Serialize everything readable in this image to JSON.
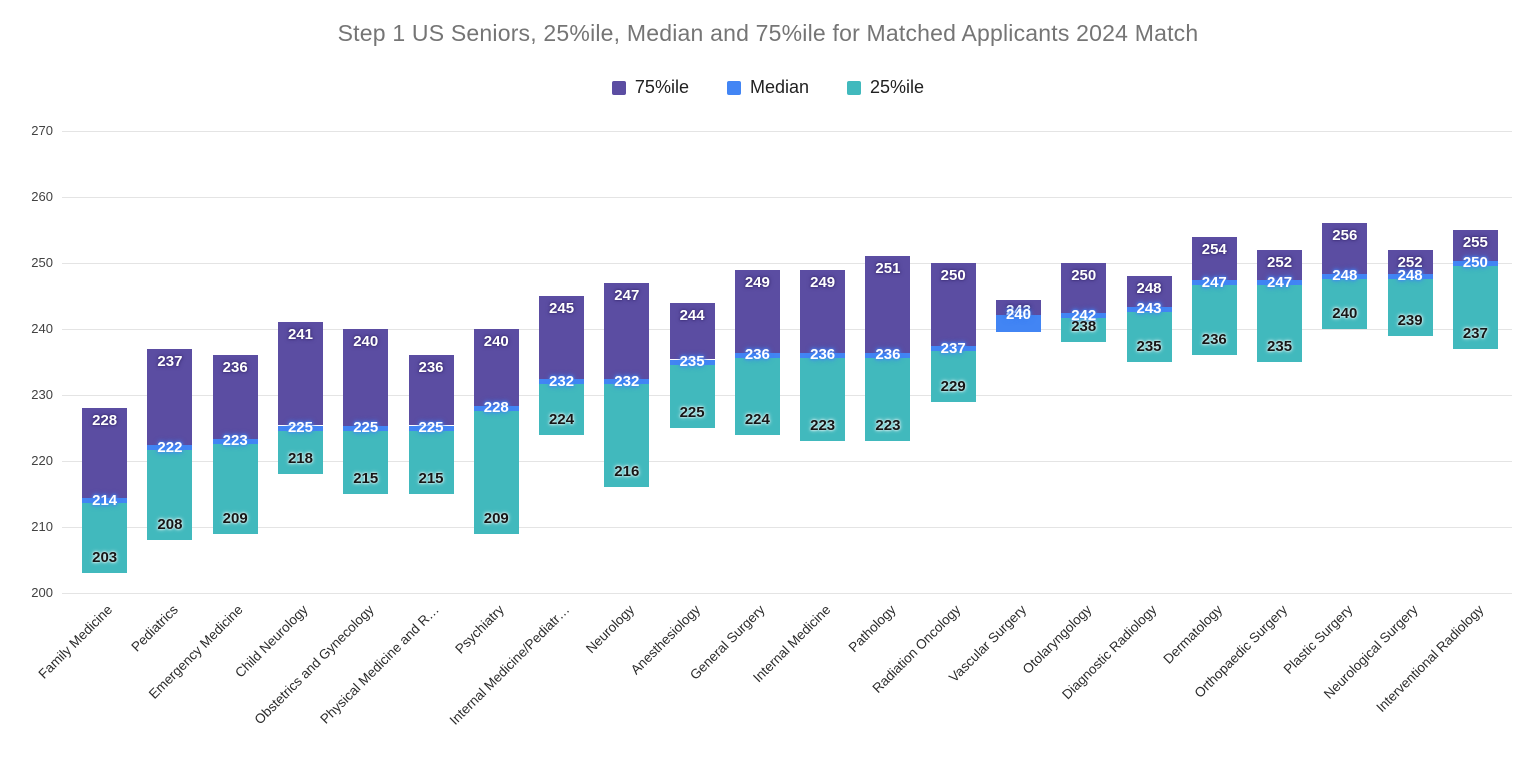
{
  "chart_data": {
    "type": "bar",
    "title": "Step 1 US Seniors, 25%ile, Median and 75%ile for Matched Applicants 2024 Match",
    "legend_position": "top",
    "grid": true,
    "ylim": [
      200,
      270
    ],
    "yticks": [
      200,
      210,
      220,
      230,
      240,
      250,
      260,
      270
    ],
    "colors": {
      "p75": "#5B4DA2",
      "median": "#4285F4",
      "p25": "#41B9BD",
      "title": "#757575",
      "gridline": "#E4E4E4"
    },
    "categories": [
      "Family Medicine",
      "Pediatrics",
      "Emergency Medicine",
      "Child Neurology",
      "Obstetrics and Gynecology",
      "Physical Medicine and R…",
      "Psychiatry",
      "Internal Medicine/Pediatr…",
      "Neurology",
      "Anesthesiology",
      "General Surgery",
      "Internal Medicine",
      "Pathology",
      "Radiation Oncology",
      "Vascular Surgery",
      "Otolaryngology",
      "Diagnostic Radiology",
      "Dermatology",
      "Orthopaedic Surgery",
      "Plastic Surgery",
      "Neurological Surgery",
      "Interventional Radiology"
    ],
    "series": [
      {
        "name": "75%ile",
        "color": "#5B4DA2",
        "values": [
          228,
          237,
          236,
          241,
          240,
          236,
          240,
          245,
          247,
          244,
          249,
          249,
          251,
          250,
          243,
          250,
          248,
          254,
          252,
          256,
          252,
          255
        ]
      },
      {
        "name": "Median",
        "color": "#4285F4",
        "values": [
          214,
          222,
          223,
          225,
          225,
          225,
          228,
          232,
          232,
          235,
          236,
          236,
          236,
          237,
          240,
          242,
          243,
          247,
          247,
          248,
          248,
          250
        ]
      },
      {
        "name": "25%ile",
        "color": "#41B9BD",
        "values": [
          203,
          208,
          209,
          218,
          215,
          215,
          209,
          224,
          216,
          225,
          224,
          223,
          223,
          229,
          null,
          238,
          235,
          236,
          235,
          240,
          239,
          237
        ]
      }
    ]
  }
}
